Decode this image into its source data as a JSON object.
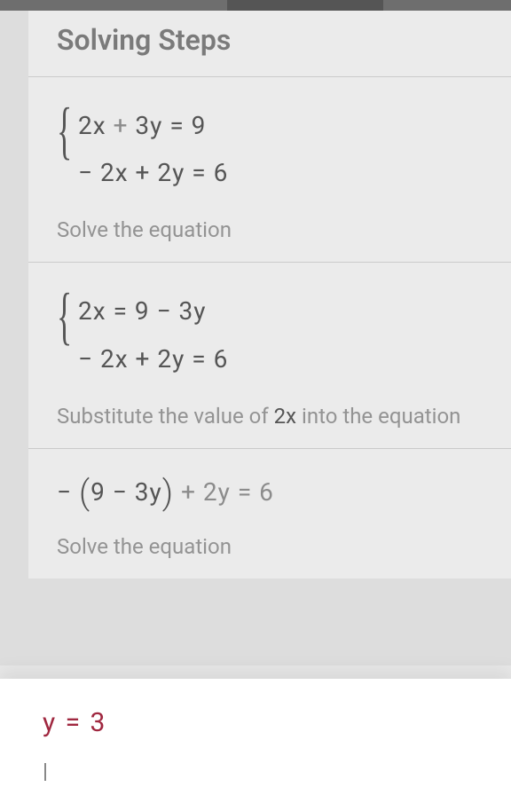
{
  "header": {
    "title": "Solving Steps"
  },
  "steps": [
    {
      "equations": [
        "2x + 3y = 9",
        "− 2x + 2y = 6"
      ],
      "description": "Solve the equation"
    },
    {
      "equations": [
        "2x = 9 − 3y",
        "− 2x + 2y = 6"
      ],
      "description_pre": "Substitute the value of ",
      "description_var": "2x",
      "description_post": " into the equation"
    },
    {
      "single_equation_pre": "− ",
      "single_equation_inner": "9 − 3y",
      "single_equation_post": " + 2y = 6",
      "description": "Solve the equation"
    }
  ],
  "result": {
    "equation": "y = 3"
  },
  "colors": {
    "title_color": "#6a6a6a",
    "equation_color": "#3a3a3a",
    "description_color": "#8a8a8a",
    "result_color": "#a02840",
    "background": "#fafafa",
    "border": "#d0d0d0",
    "overlay": "rgba(180,180,180,0.22)"
  }
}
